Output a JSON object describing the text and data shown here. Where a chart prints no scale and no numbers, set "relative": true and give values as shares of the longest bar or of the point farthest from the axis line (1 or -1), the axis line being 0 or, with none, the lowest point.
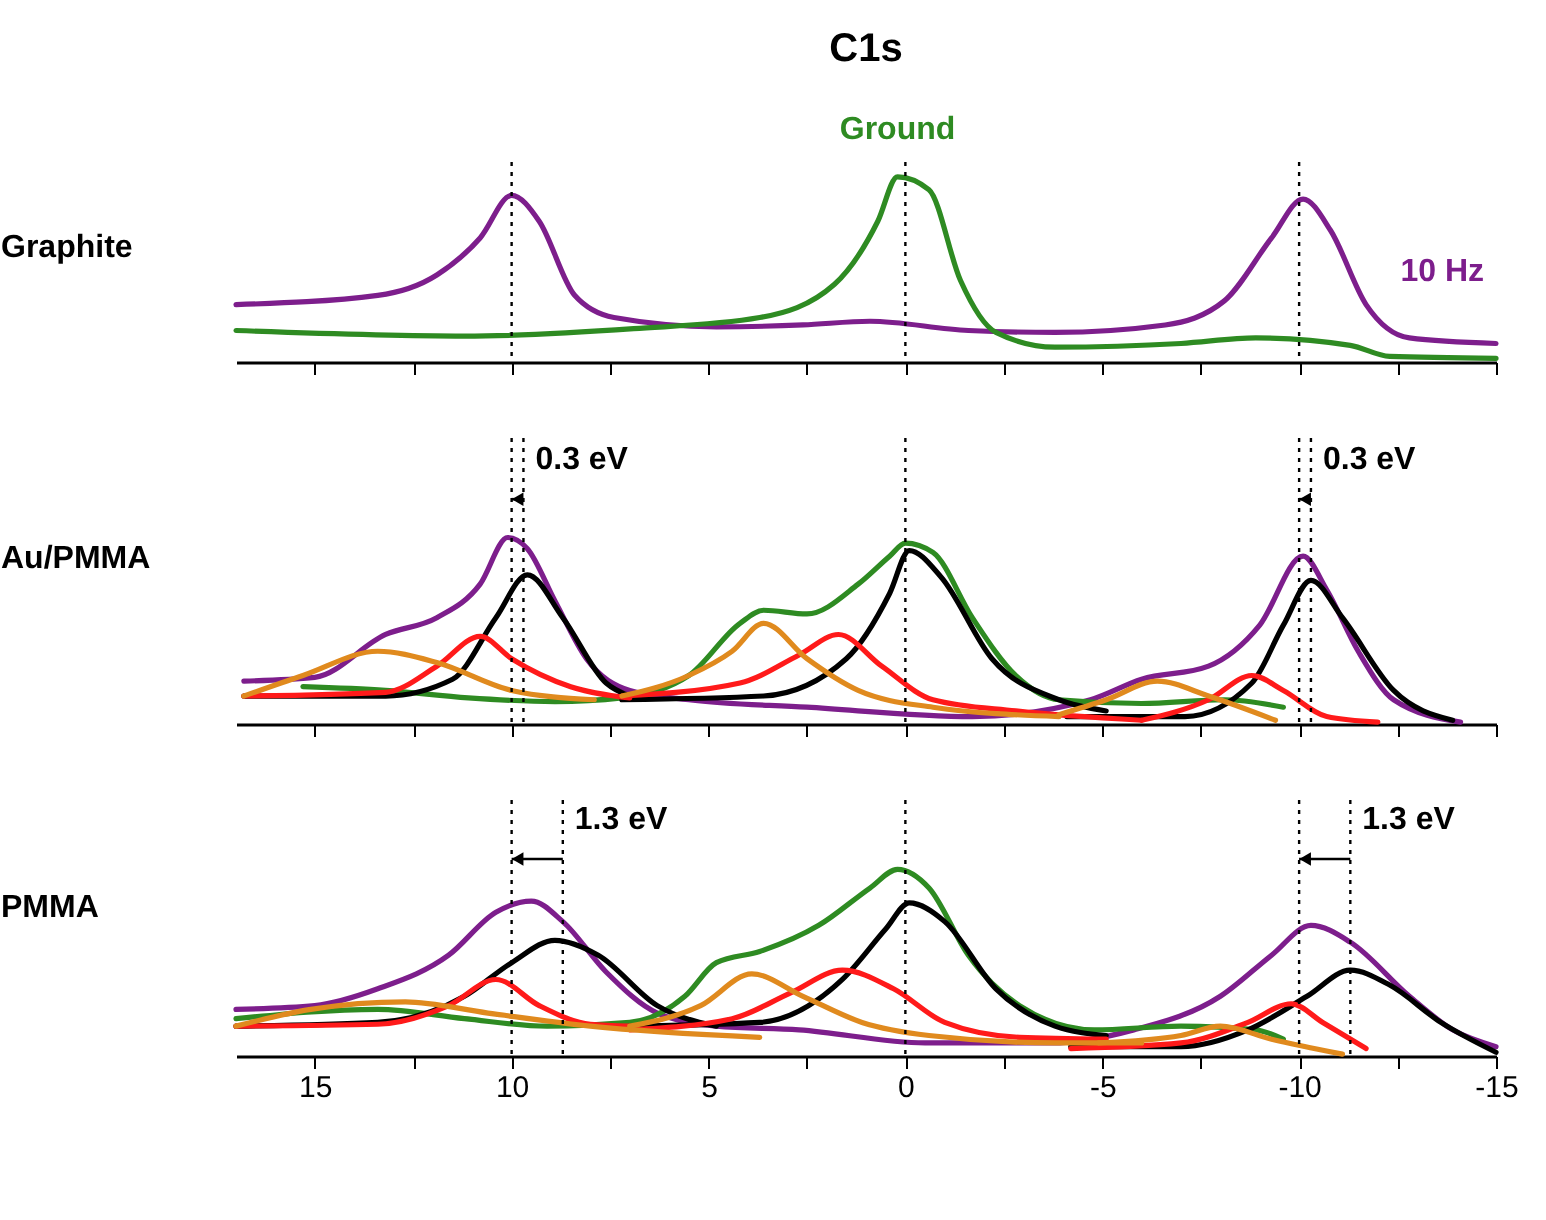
{
  "chart_data": [
    {
      "type": "line",
      "title": "C1s",
      "ylabel": "Graphite",
      "relative": true,
      "tick_labels": false,
      "xlim": [
        17,
        -15
      ],
      "xticks": [
        15,
        {
          "value": 12.5,
          "label": null
        },
        10,
        {
          "value": 7.5,
          "label": null
        },
        5,
        {
          "value": 2.5,
          "label": null
        },
        0,
        {
          "value": -2.5,
          "label": null
        },
        -5,
        {
          "value": -7.5,
          "label": null
        },
        -10,
        {
          "value": -12.5,
          "label": null
        },
        -15
      ],
      "series": [
        {
          "name": "10 Hz",
          "color": "#7d1e8c",
          "x": [
            17,
            13.4,
            11.9,
            10.8,
            10,
            9.3,
            8.4,
            7.4,
            4.8,
            2.6,
            0.9,
            -1.6,
            -3.8,
            -6.6,
            -8.1,
            -9.3,
            -10.1,
            -10.8,
            -11.7,
            -12.8,
            -15
          ],
          "values": [
            0.31,
            0.36,
            0.47,
            0.67,
            0.9,
            0.76,
            0.36,
            0.24,
            0.19,
            0.2,
            0.22,
            0.17,
            0.16,
            0.2,
            0.33,
            0.67,
            0.88,
            0.71,
            0.31,
            0.13,
            0.1
          ]
        },
        {
          "name": "Ground",
          "color": "#2e8b22",
          "x": [
            17,
            11.2,
            6.9,
            3.7,
            1.8,
            0.7,
            0.2,
            -0.6,
            -1.4,
            -2.3,
            -3.8,
            -7,
            -8.9,
            -11.3,
            -12.3,
            -15
          ],
          "values": [
            0.17,
            0.14,
            0.18,
            0.24,
            0.42,
            0.76,
            1.0,
            0.93,
            0.44,
            0.16,
            0.08,
            0.1,
            0.13,
            0.09,
            0.03,
            0.02
          ]
        }
      ],
      "ref_lines": [
        {
          "axis": "x",
          "value": 10,
          "line_style": "dotted",
          "color": "#000000"
        },
        {
          "axis": "x",
          "value": 0,
          "line_style": "dotted",
          "color": "#000000"
        },
        {
          "axis": "x",
          "value": -10,
          "line_style": "dotted",
          "color": "#000000"
        }
      ]
    },
    {
      "type": "line",
      "ylabel": "Au/PMMA",
      "relative": true,
      "tick_labels": false,
      "xlim": [
        17,
        -15
      ],
      "xticks": [
        15,
        {
          "value": 12.5,
          "label": null
        },
        10,
        {
          "value": 7.5,
          "label": null
        },
        5,
        {
          "value": 2.5,
          "label": null
        },
        0,
        {
          "value": -2.5,
          "label": null
        },
        -5,
        {
          "value": -7.5,
          "label": null
        },
        -10,
        {
          "value": -12.5,
          "label": null
        },
        -15
      ],
      "series": [
        {
          "color": "#7d1e8c",
          "x": [
            16.8,
            15,
            13.2,
            11.9,
            10.8,
            10.1,
            9.6,
            8.9,
            8.1,
            7,
            5.5,
            2.5,
            -1.7,
            -4.7,
            -6,
            -7.7,
            -9,
            -10.1,
            -10.7,
            -11.5,
            -12.4,
            -14.1
          ],
          "values": [
            0.23,
            0.25,
            0.48,
            0.57,
            0.75,
            1.0,
            0.94,
            0.66,
            0.35,
            0.18,
            0.13,
            0.09,
            0.04,
            0.13,
            0.24,
            0.31,
            0.53,
            0.9,
            0.72,
            0.39,
            0.13,
            0.01
          ]
        },
        {
          "color": "#2e8b22",
          "x": [
            15.3,
            13.2,
            11.1,
            8.9,
            7.2,
            5.5,
            4.2,
            3.6,
            2.5,
            1.2,
            0.4,
            0,
            -0.7,
            -1.7,
            -2.8,
            -3.9,
            -6,
            -8.1,
            -9.6
          ],
          "values": [
            0.2,
            0.18,
            0.14,
            0.12,
            0.14,
            0.26,
            0.54,
            0.61,
            0.59,
            0.75,
            0.9,
            0.97,
            0.92,
            0.57,
            0.26,
            0.13,
            0.11,
            0.13,
            0.09
          ]
        },
        {
          "color": "#000000",
          "x": [
            16.8,
            13.2,
            11.5,
            10.4,
            9.6,
            8.7,
            7.6,
            7
          ],
          "values": [
            0.15,
            0.15,
            0.24,
            0.57,
            0.8,
            0.57,
            0.22,
            0.15
          ]
        },
        {
          "color": "#000000",
          "x": [
            7.2,
            3.6,
            1.5,
            0.4,
            -0.1,
            -0.9,
            -2.2,
            -3.9,
            -5.1
          ],
          "values": [
            0.13,
            0.15,
            0.35,
            0.7,
            0.93,
            0.79,
            0.35,
            0.13,
            0.07
          ]
        },
        {
          "color": "#000000",
          "x": [
            -4.1,
            -7.1,
            -8.8,
            -9.6,
            -10.3,
            -11.1,
            -12.4,
            -13.9
          ],
          "values": [
            0.04,
            0.04,
            0.22,
            0.53,
            0.77,
            0.57,
            0.18,
            0.02
          ]
        },
        {
          "color": "#ff1a1a",
          "x": [
            16.8,
            13.2,
            11.9,
            10.8,
            10,
            8.5,
            7
          ],
          "values": [
            0.15,
            0.17,
            0.31,
            0.47,
            0.35,
            0.2,
            0.14
          ]
        },
        {
          "color": "#ff1a1a",
          "x": [
            7.2,
            4.2,
            2.7,
            1.7,
            0.6,
            -0.7,
            -2.8,
            -6
          ],
          "values": [
            0.15,
            0.22,
            0.37,
            0.48,
            0.31,
            0.13,
            0.07,
            0.02
          ]
        },
        {
          "color": "#ff1a1a",
          "x": [
            -6,
            -7.7,
            -8.8,
            -9.6,
            -10.7,
            -12
          ],
          "values": [
            0.02,
            0.13,
            0.26,
            0.18,
            0.04,
            0.01
          ]
        },
        {
          "color": "#e08a1e",
          "x": [
            16.8,
            15.3,
            13.4,
            11.9,
            10,
            7.9
          ],
          "values": [
            0.15,
            0.26,
            0.39,
            0.33,
            0.18,
            0.13
          ]
        },
        {
          "color": "#e08a1e",
          "x": [
            7.2,
            5.5,
            4.4,
            3.6,
            2.5,
            1.2,
            -0.7,
            -3.9
          ],
          "values": [
            0.15,
            0.26,
            0.39,
            0.54,
            0.35,
            0.18,
            0.09,
            0.04
          ]
        },
        {
          "color": "#e08a1e",
          "x": [
            -3.9,
            -5.1,
            -6.4,
            -7.7,
            -9.4
          ],
          "values": [
            0.05,
            0.13,
            0.23,
            0.15,
            0.02
          ]
        }
      ],
      "ref_lines": [
        {
          "axis": "x",
          "value": 10,
          "line_style": "dotted",
          "color": "#000000"
        },
        {
          "axis": "x",
          "value": 0,
          "line_style": "dotted",
          "color": "#000000"
        },
        {
          "axis": "x",
          "value": -10,
          "line_style": "dotted",
          "color": "#000000"
        },
        {
          "axis": "x",
          "value": 9.7,
          "line_style": "dotted",
          "color": "#000000"
        },
        {
          "axis": "x",
          "value": -10.3,
          "line_style": "dotted",
          "color": "#000000"
        }
      ],
      "annotations": [
        {
          "text": "0.3 eV",
          "x": 9.7,
          "y": 1.42
        },
        {
          "text": "0.3 eV",
          "x": -10.3,
          "y": 1.42
        }
      ]
    },
    {
      "type": "line",
      "ylabel": "PMMA",
      "relative": true,
      "tick_labels": "x",
      "xlim": [
        17,
        -15
      ],
      "xticks": [
        15,
        {
          "value": 12.5,
          "label": null
        },
        10,
        {
          "value": 7.5,
          "label": null
        },
        5,
        {
          "value": 2.5,
          "label": null
        },
        0,
        {
          "value": -2.5,
          "label": null
        },
        -5,
        {
          "value": -7.5,
          "label": null
        },
        -10,
        {
          "value": -12.5,
          "label": null
        },
        -15
      ],
      "series": [
        {
          "color": "#7d1e8c",
          "x": [
            17,
            15,
            13.4,
            11.6,
            10.4,
            9.5,
            8.7,
            7.6,
            6.3,
            4.8,
            2.7,
            -0.5,
            -3.7,
            -5.8,
            -8,
            -9.3,
            -10.3,
            -11.3,
            -12.8,
            -13.9,
            -15
          ],
          "values": [
            0.25,
            0.27,
            0.36,
            0.54,
            0.77,
            0.83,
            0.72,
            0.45,
            0.23,
            0.16,
            0.14,
            0.07,
            0.07,
            0.14,
            0.32,
            0.54,
            0.7,
            0.61,
            0.32,
            0.14,
            0.05
          ]
        },
        {
          "color": "#2e8b22",
          "x": [
            17,
            13.4,
            11.2,
            9.1,
            7,
            5.6,
            4.8,
            3.7,
            2.2,
            0.9,
            0.2,
            -0.6,
            -1.6,
            -2.9,
            -4.8,
            -7,
            -8.9,
            -9.6
          ],
          "values": [
            0.2,
            0.25,
            0.2,
            0.16,
            0.18,
            0.32,
            0.5,
            0.56,
            0.7,
            0.9,
            1.0,
            0.9,
            0.54,
            0.27,
            0.14,
            0.16,
            0.14,
            0.09
          ]
        },
        {
          "color": "#000000",
          "x": [
            17,
            13.4,
            11.2,
            10,
            8.9,
            7.8,
            6.3,
            4.8
          ],
          "values": [
            0.16,
            0.18,
            0.32,
            0.5,
            0.62,
            0.54,
            0.27,
            0.16
          ]
        },
        {
          "color": "#000000",
          "x": [
            7,
            3.7,
            1.6,
            0.5,
            -0.1,
            -1,
            -2.3,
            -3.8,
            -5.1
          ],
          "values": [
            0.16,
            0.18,
            0.41,
            0.68,
            0.82,
            0.72,
            0.36,
            0.16,
            0.11
          ]
        },
        {
          "color": "#000000",
          "x": [
            -4.2,
            -7,
            -8.7,
            -10.2,
            -11.3,
            -12.3,
            -13.6,
            -15
          ],
          "values": [
            0.05,
            0.05,
            0.14,
            0.32,
            0.46,
            0.38,
            0.18,
            0.02
          ]
        },
        {
          "color": "#ff1a1a",
          "x": [
            17,
            13.4,
            11.6,
            10.4,
            9.3,
            8,
            7
          ],
          "values": [
            0.16,
            0.17,
            0.27,
            0.41,
            0.27,
            0.17,
            0.16
          ]
        },
        {
          "color": "#ff1a1a",
          "x": [
            7,
            4.4,
            2.9,
            1.6,
            0.3,
            -1,
            -2.9,
            -5.1
          ],
          "values": [
            0.14,
            0.2,
            0.34,
            0.46,
            0.36,
            0.18,
            0.1,
            0.09
          ]
        },
        {
          "color": "#ff1a1a",
          "x": [
            -4.2,
            -7,
            -8.7,
            -9.8,
            -10.6,
            -11.7
          ],
          "values": [
            0.04,
            0.07,
            0.18,
            0.28,
            0.18,
            0.04
          ]
        },
        {
          "color": "#e08a1e",
          "x": [
            17,
            15.1,
            12.7,
            10.6,
            8,
            3.7
          ],
          "values": [
            0.16,
            0.25,
            0.29,
            0.23,
            0.16,
            0.1
          ]
        },
        {
          "color": "#e08a1e",
          "x": [
            7,
            5.2,
            3.9,
            2.6,
            1.1,
            -0.6,
            -3.8,
            -6
          ],
          "values": [
            0.16,
            0.27,
            0.44,
            0.32,
            0.18,
            0.11,
            0.07,
            0.07
          ]
        },
        {
          "color": "#e08a1e",
          "x": [
            -4.9,
            -7,
            -8,
            -9.3,
            -11.1
          ],
          "values": [
            0.07,
            0.11,
            0.16,
            0.09,
            0.01
          ]
        }
      ],
      "ref_lines": [
        {
          "axis": "x",
          "value": 10,
          "line_style": "dotted",
          "color": "#000000"
        },
        {
          "axis": "x",
          "value": 0,
          "line_style": "dotted",
          "color": "#000000"
        },
        {
          "axis": "x",
          "value": -10,
          "line_style": "dotted",
          "color": "#000000"
        },
        {
          "axis": "x",
          "value": 8.7,
          "line_style": "dotted",
          "color": "#000000"
        },
        {
          "axis": "x",
          "value": -11.3,
          "line_style": "dotted",
          "color": "#000000"
        }
      ],
      "annotations": [
        {
          "text": "1.3 eV",
          "x": 8.7,
          "y": 1.27
        },
        {
          "text": "1.3 eV",
          "x": -11.3,
          "y": 1.27
        }
      ]
    }
  ]
}
